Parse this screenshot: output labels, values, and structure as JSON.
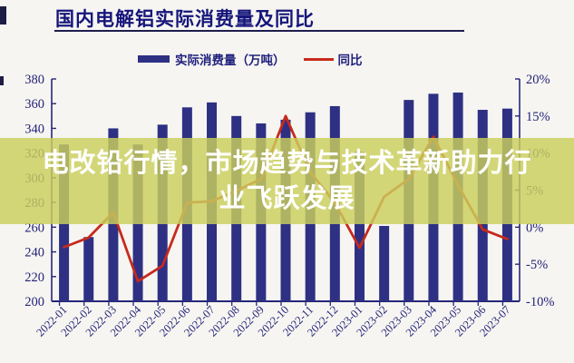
{
  "title": "国内电解铝实际消费量及同比",
  "legend": {
    "bar_label": "实际消费量（万吨）",
    "line_label": "同比"
  },
  "overlay": {
    "line1": "电改铅行情，市场趋势与技术革新助力行",
    "line2": "业飞跃发展",
    "full_text": "电改铅行情，市场趋势与技术革新助力行业飞跃发展"
  },
  "colors": {
    "bar": "#2e3083",
    "line": "#c62a1d",
    "axis": "#26267a",
    "label": "#23237a",
    "title": "#15157b",
    "band": "#cbd05c",
    "band_text": "#ffffff",
    "background": "#f6f5f1"
  },
  "chart_data": {
    "type": "bar+line",
    "title": "国内电解铝实际消费量及同比",
    "categories": [
      "2022-01",
      "2022-02",
      "2022-03",
      "2022-04",
      "2022-05",
      "2022-06",
      "2022-07",
      "2022-08",
      "2022-09",
      "2022-10",
      "2022-11",
      "2022-12",
      "2023-01",
      "2023-02",
      "2023-03",
      "2023-04",
      "2023-05",
      "2023-06",
      "2023-07"
    ],
    "series": [
      {
        "name": "实际消费量（万吨）",
        "type": "bar",
        "axis": "left",
        "values": [
          327,
          252,
          340,
          327,
          343,
          357,
          361,
          350,
          344,
          347,
          353,
          358,
          321,
          261,
          363,
          368,
          369,
          355,
          356
        ]
      },
      {
        "name": "同比",
        "type": "line",
        "axis": "right",
        "values": [
          -2.7,
          -1.4,
          2.0,
          -7.3,
          -5.2,
          3.3,
          3.5,
          4.9,
          6.5,
          15.0,
          7.4,
          3.3,
          -2.8,
          4.1,
          6.5,
          12.2,
          5.7,
          -0.3,
          -1.6
        ]
      }
    ],
    "left_axis": {
      "min": 200,
      "max": 380,
      "step": 20,
      "tick_labels": [
        "380",
        "360",
        "340",
        "320",
        "300",
        "280",
        "260",
        "240",
        "220",
        "200"
      ]
    },
    "right_axis": {
      "min": -10,
      "max": 20,
      "step": 5,
      "tick_labels": [
        "20%",
        "15%",
        "10%",
        "5%",
        "0%",
        "-5%",
        "-10%"
      ]
    },
    "grid": false,
    "legend_position": "top"
  }
}
